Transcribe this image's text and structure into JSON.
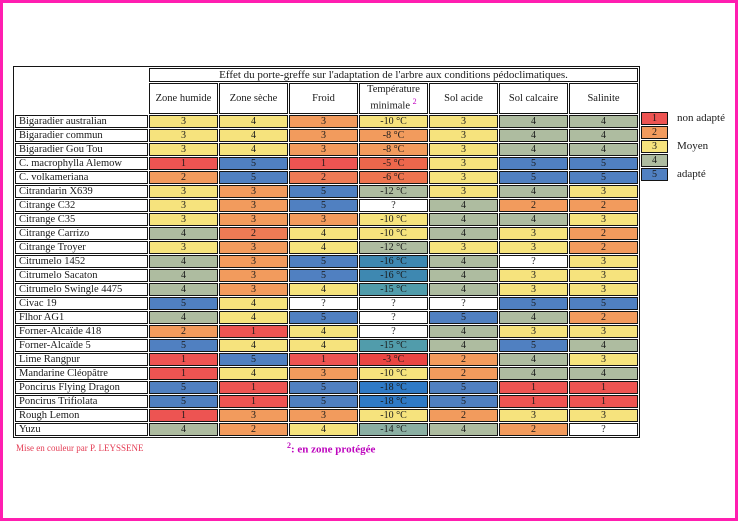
{
  "title": "Effet du porte-greffe sur l'adaptation de l'arbre aux conditions pédoclimatiques.",
  "columns": [
    {
      "label": "Zone humide"
    },
    {
      "label": "Zone sèche"
    },
    {
      "label": "Froid"
    },
    {
      "label": "Température minimale",
      "sup": "2"
    },
    {
      "label": "Sol acide"
    },
    {
      "label": "Sol calcaire"
    },
    {
      "label": "Salinite"
    }
  ],
  "palette": {
    "R": "#ED5452",
    "O": "#F29B5D",
    "C": "#EE7B55",
    "Y": "#F6E37D",
    "G": "#AEBCA0",
    "B": "#5080C1",
    "W": "#FFFFFF",
    "T3": "#E94643",
    "T5": "#EC674C",
    "T6": "#EE744F",
    "T14": "#8BAFA3",
    "T15": "#519CAB",
    "T16": "#3E88B1",
    "T18": "#2F7AC6"
  },
  "rows": [
    {
      "label": "Bigaradier australian",
      "cells": [
        {
          "v": "3",
          "k": "Y"
        },
        {
          "v": "4",
          "k": "Y"
        },
        {
          "v": "3",
          "k": "O"
        },
        {
          "v": "-10 °C",
          "k": "Y"
        },
        {
          "v": "3",
          "k": "Y"
        },
        {
          "v": "4",
          "k": "G"
        },
        {
          "v": "4",
          "k": "G"
        }
      ]
    },
    {
      "label": "Bigaradier commun",
      "cells": [
        {
          "v": "3",
          "k": "Y"
        },
        {
          "v": "4",
          "k": "Y"
        },
        {
          "v": "3",
          "k": "O"
        },
        {
          "v": "-8 °C",
          "k": "O"
        },
        {
          "v": "3",
          "k": "Y"
        },
        {
          "v": "4",
          "k": "G"
        },
        {
          "v": "4",
          "k": "G"
        }
      ]
    },
    {
      "label": "Bigaradier Gou Tou",
      "cells": [
        {
          "v": "3",
          "k": "Y"
        },
        {
          "v": "4",
          "k": "Y"
        },
        {
          "v": "3",
          "k": "O"
        },
        {
          "v": "-8 °C",
          "k": "O"
        },
        {
          "v": "3",
          "k": "Y"
        },
        {
          "v": "4",
          "k": "G"
        },
        {
          "v": "4",
          "k": "G"
        }
      ]
    },
    {
      "label": "C. macrophylla Alemow",
      "cells": [
        {
          "v": "1",
          "k": "R"
        },
        {
          "v": "5",
          "k": "B"
        },
        {
          "v": "1",
          "k": "R"
        },
        {
          "v": "-5 °C",
          "k": "T5"
        },
        {
          "v": "3",
          "k": "Y"
        },
        {
          "v": "5",
          "k": "B"
        },
        {
          "v": "5",
          "k": "B"
        }
      ]
    },
    {
      "label": "C. volkameriana",
      "cells": [
        {
          "v": "2",
          "k": "O"
        },
        {
          "v": "5",
          "k": "B"
        },
        {
          "v": "2",
          "k": "C"
        },
        {
          "v": "-6 °C",
          "k": "T6"
        },
        {
          "v": "3",
          "k": "Y"
        },
        {
          "v": "5",
          "k": "B"
        },
        {
          "v": "5",
          "k": "B"
        }
      ]
    },
    {
      "label": "Citrandarin X639",
      "cells": [
        {
          "v": "3",
          "k": "Y"
        },
        {
          "v": "3",
          "k": "O"
        },
        {
          "v": "5",
          "k": "B"
        },
        {
          "v": "-12 °C",
          "k": "G"
        },
        {
          "v": "3",
          "k": "Y"
        },
        {
          "v": "4",
          "k": "G"
        },
        {
          "v": "3",
          "k": "Y"
        }
      ]
    },
    {
      "label": "Citrange C32",
      "cells": [
        {
          "v": "3",
          "k": "Y"
        },
        {
          "v": "3",
          "k": "O"
        },
        {
          "v": "5",
          "k": "B"
        },
        {
          "v": "?",
          "k": "W"
        },
        {
          "v": "4",
          "k": "G"
        },
        {
          "v": "2",
          "k": "O"
        },
        {
          "v": "2",
          "k": "O"
        }
      ]
    },
    {
      "label": "Citrange C35",
      "cells": [
        {
          "v": "3",
          "k": "Y"
        },
        {
          "v": "3",
          "k": "O"
        },
        {
          "v": "3",
          "k": "O"
        },
        {
          "v": "-10 °C",
          "k": "Y"
        },
        {
          "v": "4",
          "k": "G"
        },
        {
          "v": "4",
          "k": "G"
        },
        {
          "v": "3",
          "k": "Y"
        }
      ]
    },
    {
      "label": "Citrange Carrizo",
      "cells": [
        {
          "v": "4",
          "k": "G"
        },
        {
          "v": "2",
          "k": "C"
        },
        {
          "v": "4",
          "k": "Y"
        },
        {
          "v": "-10 °C",
          "k": "Y"
        },
        {
          "v": "4",
          "k": "G"
        },
        {
          "v": "3",
          "k": "Y"
        },
        {
          "v": "2",
          "k": "O"
        }
      ]
    },
    {
      "label": "Citrange Troyer",
      "cells": [
        {
          "v": "3",
          "k": "Y"
        },
        {
          "v": "3",
          "k": "O"
        },
        {
          "v": "4",
          "k": "Y"
        },
        {
          "v": "-12 °C",
          "k": "G"
        },
        {
          "v": "3",
          "k": "Y"
        },
        {
          "v": "3",
          "k": "Y"
        },
        {
          "v": "2",
          "k": "O"
        }
      ]
    },
    {
      "label": "Citrumelo 1452",
      "cells": [
        {
          "v": "4",
          "k": "G"
        },
        {
          "v": "3",
          "k": "O"
        },
        {
          "v": "5",
          "k": "B"
        },
        {
          "v": "-16 °C",
          "k": "T16"
        },
        {
          "v": "4",
          "k": "G"
        },
        {
          "v": "?",
          "k": "W"
        },
        {
          "v": "3",
          "k": "Y"
        }
      ]
    },
    {
      "label": "Citrumelo Sacaton",
      "cells": [
        {
          "v": "4",
          "k": "G"
        },
        {
          "v": "3",
          "k": "O"
        },
        {
          "v": "5",
          "k": "B"
        },
        {
          "v": "-16 °C",
          "k": "T16"
        },
        {
          "v": "4",
          "k": "G"
        },
        {
          "v": "3",
          "k": "Y"
        },
        {
          "v": "3",
          "k": "Y"
        }
      ]
    },
    {
      "label": "Citrumelo Swingle 4475",
      "cells": [
        {
          "v": "4",
          "k": "G"
        },
        {
          "v": "3",
          "k": "O"
        },
        {
          "v": "4",
          "k": "Y"
        },
        {
          "v": "-15 °C",
          "k": "T15"
        },
        {
          "v": "4",
          "k": "G"
        },
        {
          "v": "3",
          "k": "Y"
        },
        {
          "v": "3",
          "k": "Y"
        }
      ]
    },
    {
      "label": "Civac 19",
      "cells": [
        {
          "v": "5",
          "k": "B"
        },
        {
          "v": "4",
          "k": "Y"
        },
        {
          "v": "?",
          "k": "W"
        },
        {
          "v": "?",
          "k": "W"
        },
        {
          "v": "?",
          "k": "W"
        },
        {
          "v": "5",
          "k": "B"
        },
        {
          "v": "5",
          "k": "B"
        }
      ]
    },
    {
      "label": "Flhor AG1",
      "cells": [
        {
          "v": "4",
          "k": "G"
        },
        {
          "v": "4",
          "k": "Y"
        },
        {
          "v": "5",
          "k": "B"
        },
        {
          "v": "?",
          "k": "W"
        },
        {
          "v": "5",
          "k": "B"
        },
        {
          "v": "4",
          "k": "G"
        },
        {
          "v": "2",
          "k": "O"
        }
      ]
    },
    {
      "label": "Forner-Alcaïde 418",
      "cells": [
        {
          "v": "2",
          "k": "O"
        },
        {
          "v": "1",
          "k": "R"
        },
        {
          "v": "4",
          "k": "Y"
        },
        {
          "v": "?",
          "k": "W"
        },
        {
          "v": "4",
          "k": "G"
        },
        {
          "v": "3",
          "k": "Y"
        },
        {
          "v": "3",
          "k": "Y"
        }
      ]
    },
    {
      "label": "Forner-Alcaïde 5",
      "cells": [
        {
          "v": "5",
          "k": "B"
        },
        {
          "v": "4",
          "k": "Y"
        },
        {
          "v": "4",
          "k": "Y"
        },
        {
          "v": "-15 °C",
          "k": "T15"
        },
        {
          "v": "4",
          "k": "G"
        },
        {
          "v": "5",
          "k": "B"
        },
        {
          "v": "4",
          "k": "G"
        }
      ]
    },
    {
      "label": "Lime Rangpur",
      "cells": [
        {
          "v": "1",
          "k": "R"
        },
        {
          "v": "5",
          "k": "B"
        },
        {
          "v": "1",
          "k": "R"
        },
        {
          "v": "-3 °C",
          "k": "T3"
        },
        {
          "v": "2",
          "k": "O"
        },
        {
          "v": "4",
          "k": "G"
        },
        {
          "v": "3",
          "k": "Y"
        }
      ]
    },
    {
      "label": "Mandarine Cléopâtre",
      "cells": [
        {
          "v": "1",
          "k": "R"
        },
        {
          "v": "4",
          "k": "Y"
        },
        {
          "v": "3",
          "k": "O"
        },
        {
          "v": "-10 °C",
          "k": "Y"
        },
        {
          "v": "2",
          "k": "O"
        },
        {
          "v": "4",
          "k": "G"
        },
        {
          "v": "4",
          "k": "G"
        }
      ]
    },
    {
      "label": "Poncirus Flying Dragon",
      "cells": [
        {
          "v": "5",
          "k": "B"
        },
        {
          "v": "1",
          "k": "R"
        },
        {
          "v": "5",
          "k": "B"
        },
        {
          "v": "-18 °C",
          "k": "T18"
        },
        {
          "v": "5",
          "k": "B"
        },
        {
          "v": "1",
          "k": "R"
        },
        {
          "v": "1",
          "k": "R"
        }
      ]
    },
    {
      "label": "Poncirus Trifiolata",
      "cells": [
        {
          "v": "5",
          "k": "B"
        },
        {
          "v": "1",
          "k": "R"
        },
        {
          "v": "5",
          "k": "B"
        },
        {
          "v": "-18 °C",
          "k": "T18"
        },
        {
          "v": "5",
          "k": "B"
        },
        {
          "v": "1",
          "k": "R"
        },
        {
          "v": "1",
          "k": "R"
        }
      ]
    },
    {
      "label": "Rough Lemon",
      "cells": [
        {
          "v": "1",
          "k": "R"
        },
        {
          "v": "3",
          "k": "O"
        },
        {
          "v": "3",
          "k": "O"
        },
        {
          "v": "-10 °C",
          "k": "Y"
        },
        {
          "v": "2",
          "k": "O"
        },
        {
          "v": "3",
          "k": "Y"
        },
        {
          "v": "3",
          "k": "Y"
        }
      ]
    },
    {
      "label": "Yuzu",
      "cells": [
        {
          "v": "4",
          "k": "G"
        },
        {
          "v": "2",
          "k": "O"
        },
        {
          "v": "4",
          "k": "Y"
        },
        {
          "v": "-14 °C",
          "k": "T14"
        },
        {
          "v": "4",
          "k": "G"
        },
        {
          "v": "2",
          "k": "O"
        },
        {
          "v": "?",
          "k": "W"
        }
      ]
    }
  ],
  "legend": [
    {
      "value": "1",
      "color": "#ED5452",
      "label": "non adapté"
    },
    {
      "value": "2",
      "color": "#F29B5D",
      "label": ""
    },
    {
      "value": "3",
      "color": "#F6E37D",
      "label": "Moyen"
    },
    {
      "value": "4",
      "color": "#AEBCA0",
      "label": ""
    },
    {
      "value": "5",
      "color": "#5080C1",
      "label": "adapté"
    }
  ],
  "footer": {
    "credit": "Mise en couleur par P. LEYSSENE",
    "note_sup": "2",
    "note_text": ": en zone protégée"
  }
}
